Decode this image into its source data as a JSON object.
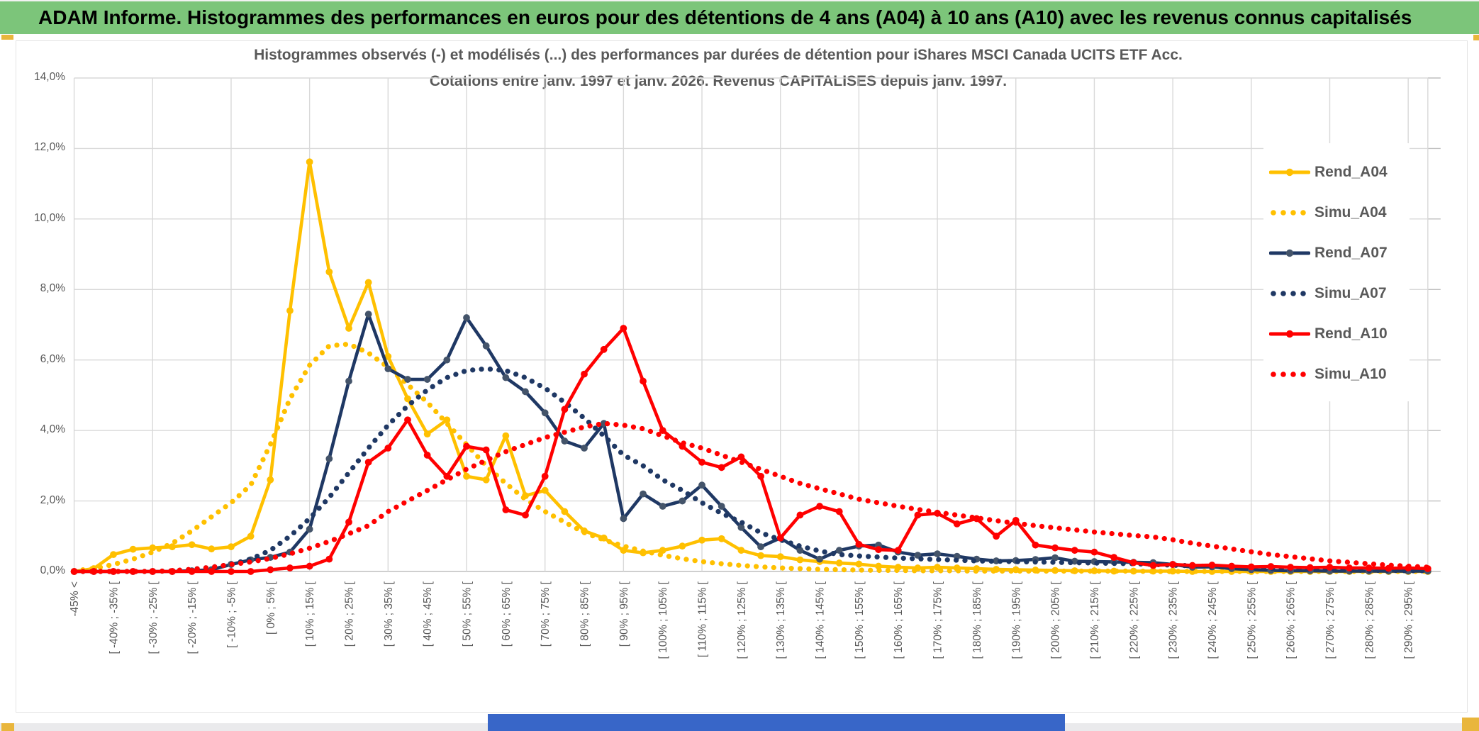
{
  "banner": {
    "title": "ADAM Informe. Histogrammes des performances en euros pour des détentions de 4 ans (A04) à 10 ans (A10) avec les revenus connus capitalisés"
  },
  "chart_data": {
    "type": "line",
    "title": "Histogrammes observés (-) et modélisés (...) des performances par durées de détention pour iShares MSCI Canada UCITS ETF Acc.",
    "subtitle": "Cotations entre janv. 1997 et janv. 2026. Revenus CAPITALISES depuis janv. 1997.",
    "ylabel": "",
    "xlabel": "",
    "ylim_pct": [
      0,
      14
    ],
    "y_tick_step_pct": 2,
    "y_tick_labels": [
      "0,0%",
      "2,0%",
      "4,0%",
      "6,0%",
      "8,0%",
      "10,0%",
      "12,0%",
      "14,0%"
    ],
    "x_bin_width_pct": 5,
    "x_bins_total": 70,
    "x_labels_every": 2,
    "grid": "both",
    "legend_position": "right-inside",
    "x_tick_labels": [
      "-45% <",
      "[ -40% ; -35% [",
      "[ -30% ; -25% [",
      "[ -20% ; -15% [",
      "[ -10% ; -5% [",
      "[ 0% ; 5% [",
      "[ 10% ; 15% [",
      "[ 20% ; 25% [",
      "[ 30% ; 35% [",
      "[ 40% ; 45% [",
      "[ 50% ; 55% [",
      "[ 60% ; 65% [",
      "[ 70% ; 75% [",
      "[ 80% ; 85% [",
      "[ 90% ; 95% [",
      "[ 100% ; 105% [",
      "[ 110% ; 115% [",
      "[ 120% ; 125% [",
      "[ 130% ; 135% [",
      "[ 140% ; 145% [",
      "[ 150% ; 155% [",
      "[ 160% ; 165% [",
      "[ 170% ; 175% [",
      "[ 180% ; 185% [",
      "[ 190% ; 195% [",
      "[ 200% ; 205% [",
      "[ 210% ; 215% [",
      "[ 220% ; 225% [",
      "[ 230% ; 235% [",
      "[ 240% ; 245% [",
      "[ 250% ; 255% [",
      "[ 260% ; 265% [",
      "[ 270% ; 275% [",
      "[ 280% ; 285% [",
      "[ 290% ; 295% ["
    ],
    "series": [
      {
        "name": "Rend_A04",
        "style": "solid-markers",
        "color": "#FFC000",
        "marker_color": "#FFC000",
        "values": [
          0,
          0.08,
          0.48,
          0.63,
          0.67,
          0.7,
          0.76,
          0.64,
          0.7,
          1.0,
          2.6,
          7.4,
          11.62,
          8.5,
          6.9,
          8.2,
          6.1,
          4.9,
          3.9,
          4.3,
          2.7,
          2.6,
          3.85,
          2.15,
          2.3,
          1.7,
          1.15,
          0.95,
          0.6,
          0.53,
          0.6,
          0.72,
          0.89,
          0.93,
          0.6,
          0.45,
          0.42,
          0.33,
          0.28,
          0.24,
          0.21,
          0.15,
          0.12,
          0.1,
          0.12,
          0.1,
          0.08,
          0.06,
          0.05,
          0.04,
          0.03,
          0.02,
          0.02,
          0.01,
          0.01,
          0.01,
          0.01,
          0,
          0,
          0,
          0,
          0,
          0,
          0,
          0,
          0,
          0,
          0,
          0,
          0
        ]
      },
      {
        "name": "Simu_A04",
        "style": "dotted",
        "color": "#FFC000",
        "values": [
          0.02,
          0.08,
          0.2,
          0.35,
          0.55,
          0.8,
          1.15,
          1.55,
          1.95,
          2.45,
          3.6,
          4.9,
          5.85,
          6.4,
          6.45,
          6.2,
          5.8,
          5.3,
          4.8,
          4.2,
          3.6,
          3.0,
          2.5,
          2.05,
          1.7,
          1.4,
          1.1,
          0.9,
          0.72,
          0.58,
          0.46,
          0.36,
          0.28,
          0.22,
          0.17,
          0.13,
          0.1,
          0.08,
          0.06,
          0.05,
          0.04,
          0.03,
          0.03,
          0.02,
          0.02,
          0.02,
          0.01,
          0.01,
          0.01,
          0.01,
          0.01,
          0.01,
          0.01,
          0.01,
          0.01,
          0,
          0,
          0,
          0,
          0,
          0,
          0,
          0,
          0,
          0,
          0,
          0,
          0,
          0,
          0
        ]
      },
      {
        "name": "Rend_A07",
        "style": "solid-markers",
        "color": "#1F3864",
        "marker_color": "#44546A",
        "values": [
          0,
          0,
          0,
          0,
          0,
          0,
          0.02,
          0.05,
          0.2,
          0.33,
          0.4,
          0.55,
          1.2,
          3.2,
          5.4,
          7.3,
          5.75,
          5.45,
          5.45,
          6.0,
          7.2,
          6.4,
          5.5,
          5.1,
          4.5,
          3.7,
          3.5,
          4.2,
          1.5,
          2.2,
          1.85,
          2.0,
          2.45,
          1.85,
          1.25,
          0.7,
          0.95,
          0.6,
          0.35,
          0.6,
          0.72,
          0.75,
          0.55,
          0.46,
          0.5,
          0.43,
          0.35,
          0.3,
          0.31,
          0.34,
          0.39,
          0.29,
          0.28,
          0.27,
          0.26,
          0.25,
          0.2,
          0.12,
          0.13,
          0.08,
          0.05,
          0.03,
          0.02,
          0.02,
          0.01,
          0.01,
          0.01,
          0.01,
          0.01,
          0.01
        ]
      },
      {
        "name": "Simu_A07",
        "style": "dotted",
        "color": "#1F3864",
        "values": [
          0,
          0,
          0,
          0,
          0,
          0.02,
          0.06,
          0.12,
          0.2,
          0.35,
          0.6,
          1.0,
          1.5,
          2.1,
          2.8,
          3.5,
          4.15,
          4.7,
          5.15,
          5.5,
          5.7,
          5.75,
          5.7,
          5.5,
          5.2,
          4.8,
          4.35,
          3.85,
          3.3,
          3.0,
          2.6,
          2.3,
          1.95,
          1.65,
          1.4,
          1.1,
          0.9,
          0.72,
          0.58,
          0.48,
          0.44,
          0.41,
          0.38,
          0.36,
          0.34,
          0.32,
          0.3,
          0.29,
          0.28,
          0.27,
          0.26,
          0.25,
          0.24,
          0.23,
          0.22,
          0.2,
          0.18,
          0.16,
          0.14,
          0.12,
          0.1,
          0.08,
          0.07,
          0.06,
          0.05,
          0.04,
          0.03,
          0.03,
          0.02,
          0.02
        ]
      },
      {
        "name": "Rend_A10",
        "style": "solid-markers",
        "color": "#FF0000",
        "marker_color": "#FF0000",
        "values": [
          0,
          0,
          0,
          0,
          0,
          0,
          0,
          0,
          0,
          0,
          0.05,
          0.1,
          0.15,
          0.35,
          1.4,
          3.1,
          3.5,
          4.3,
          3.3,
          2.7,
          3.55,
          3.45,
          1.75,
          1.6,
          2.7,
          4.6,
          5.6,
          6.3,
          6.9,
          5.4,
          4.0,
          3.55,
          3.1,
          2.95,
          3.25,
          2.7,
          0.95,
          1.6,
          1.85,
          1.7,
          0.77,
          0.62,
          0.6,
          1.6,
          1.65,
          1.35,
          1.5,
          1.0,
          1.45,
          0.75,
          0.67,
          0.6,
          0.55,
          0.4,
          0.25,
          0.17,
          0.2,
          0.17,
          0.18,
          0.15,
          0.13,
          0.14,
          0.12,
          0.11,
          0.12,
          0.1,
          0.1,
          0.09,
          0.1,
          0.08
        ]
      },
      {
        "name": "Simu_A10",
        "style": "dotted",
        "color": "#FF0000",
        "values": [
          0,
          0,
          0,
          0,
          0,
          0.02,
          0.06,
          0.12,
          0.2,
          0.27,
          0.37,
          0.5,
          0.66,
          0.85,
          1.07,
          1.3,
          1.7,
          2.0,
          2.3,
          2.6,
          2.9,
          3.15,
          3.4,
          3.6,
          3.8,
          3.95,
          4.1,
          4.2,
          4.15,
          4.05,
          3.85,
          3.65,
          3.5,
          3.3,
          3.1,
          2.9,
          2.7,
          2.5,
          2.35,
          2.2,
          2.05,
          1.95,
          1.85,
          1.76,
          1.68,
          1.6,
          1.52,
          1.44,
          1.37,
          1.3,
          1.24,
          1.18,
          1.12,
          1.07,
          1.02,
          0.98,
          0.9,
          0.8,
          0.72,
          0.64,
          0.56,
          0.48,
          0.42,
          0.36,
          0.3,
          0.26,
          0.22,
          0.18,
          0.15,
          0.12
        ]
      }
    ],
    "colors": {
      "banner_green": "#7cc57a",
      "gold_accent": "#e9b63c",
      "scrollbar_blue": "#3866c8",
      "gridline": "#D9D9D9",
      "axis_line": "#BFBFBF",
      "text_gray": "#595959"
    }
  }
}
